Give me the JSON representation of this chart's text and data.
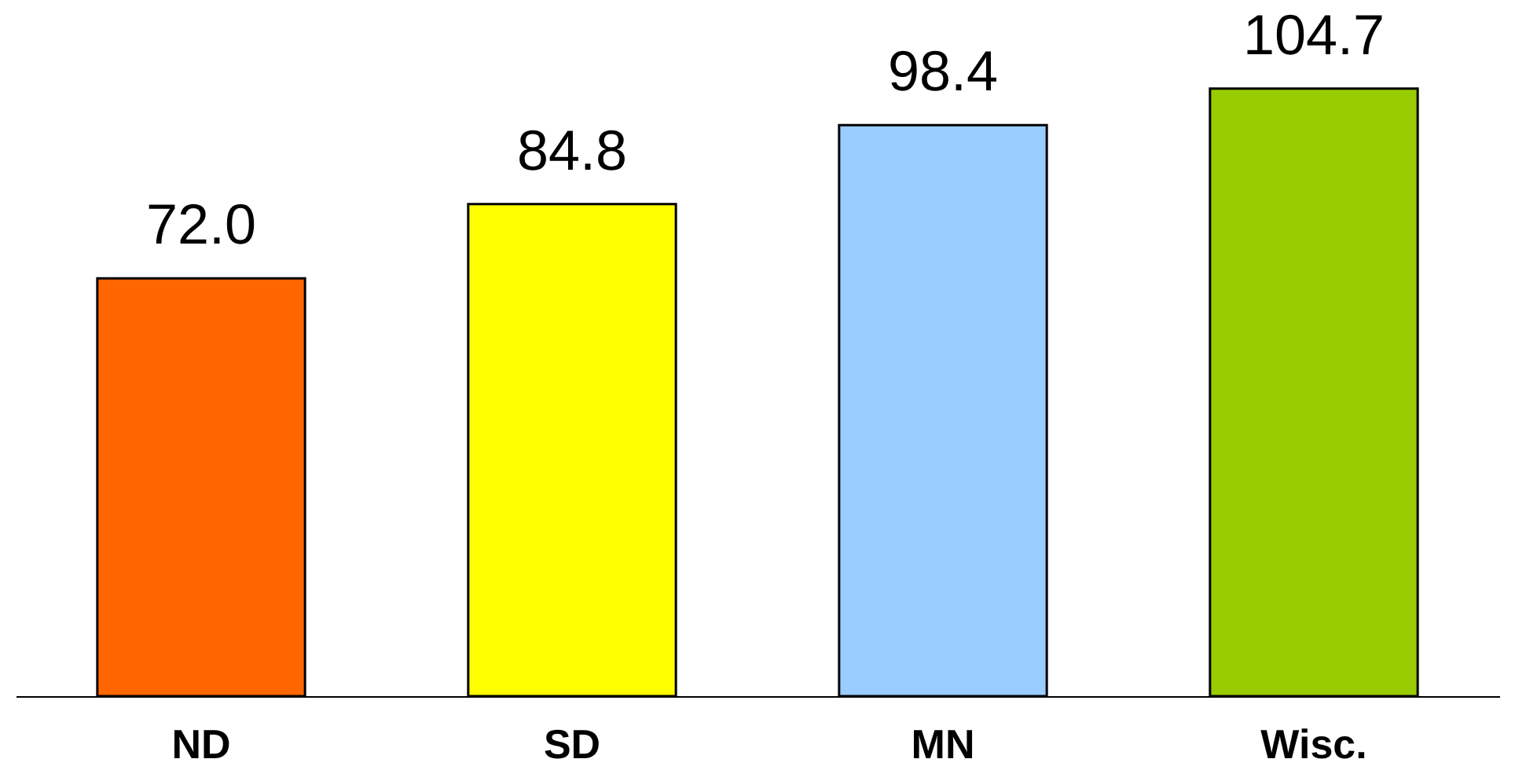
{
  "chart_data": {
    "type": "bar",
    "categories": [
      "ND",
      "SD",
      "MN",
      "Wisc."
    ],
    "values": [
      72.0,
      84.8,
      98.4,
      104.7
    ],
    "colors": [
      "#ff6600",
      "#ffff00",
      "#99ccff",
      "#99cc00"
    ],
    "value_labels": [
      "72.0",
      "84.8",
      "98.4",
      "104.7"
    ]
  }
}
